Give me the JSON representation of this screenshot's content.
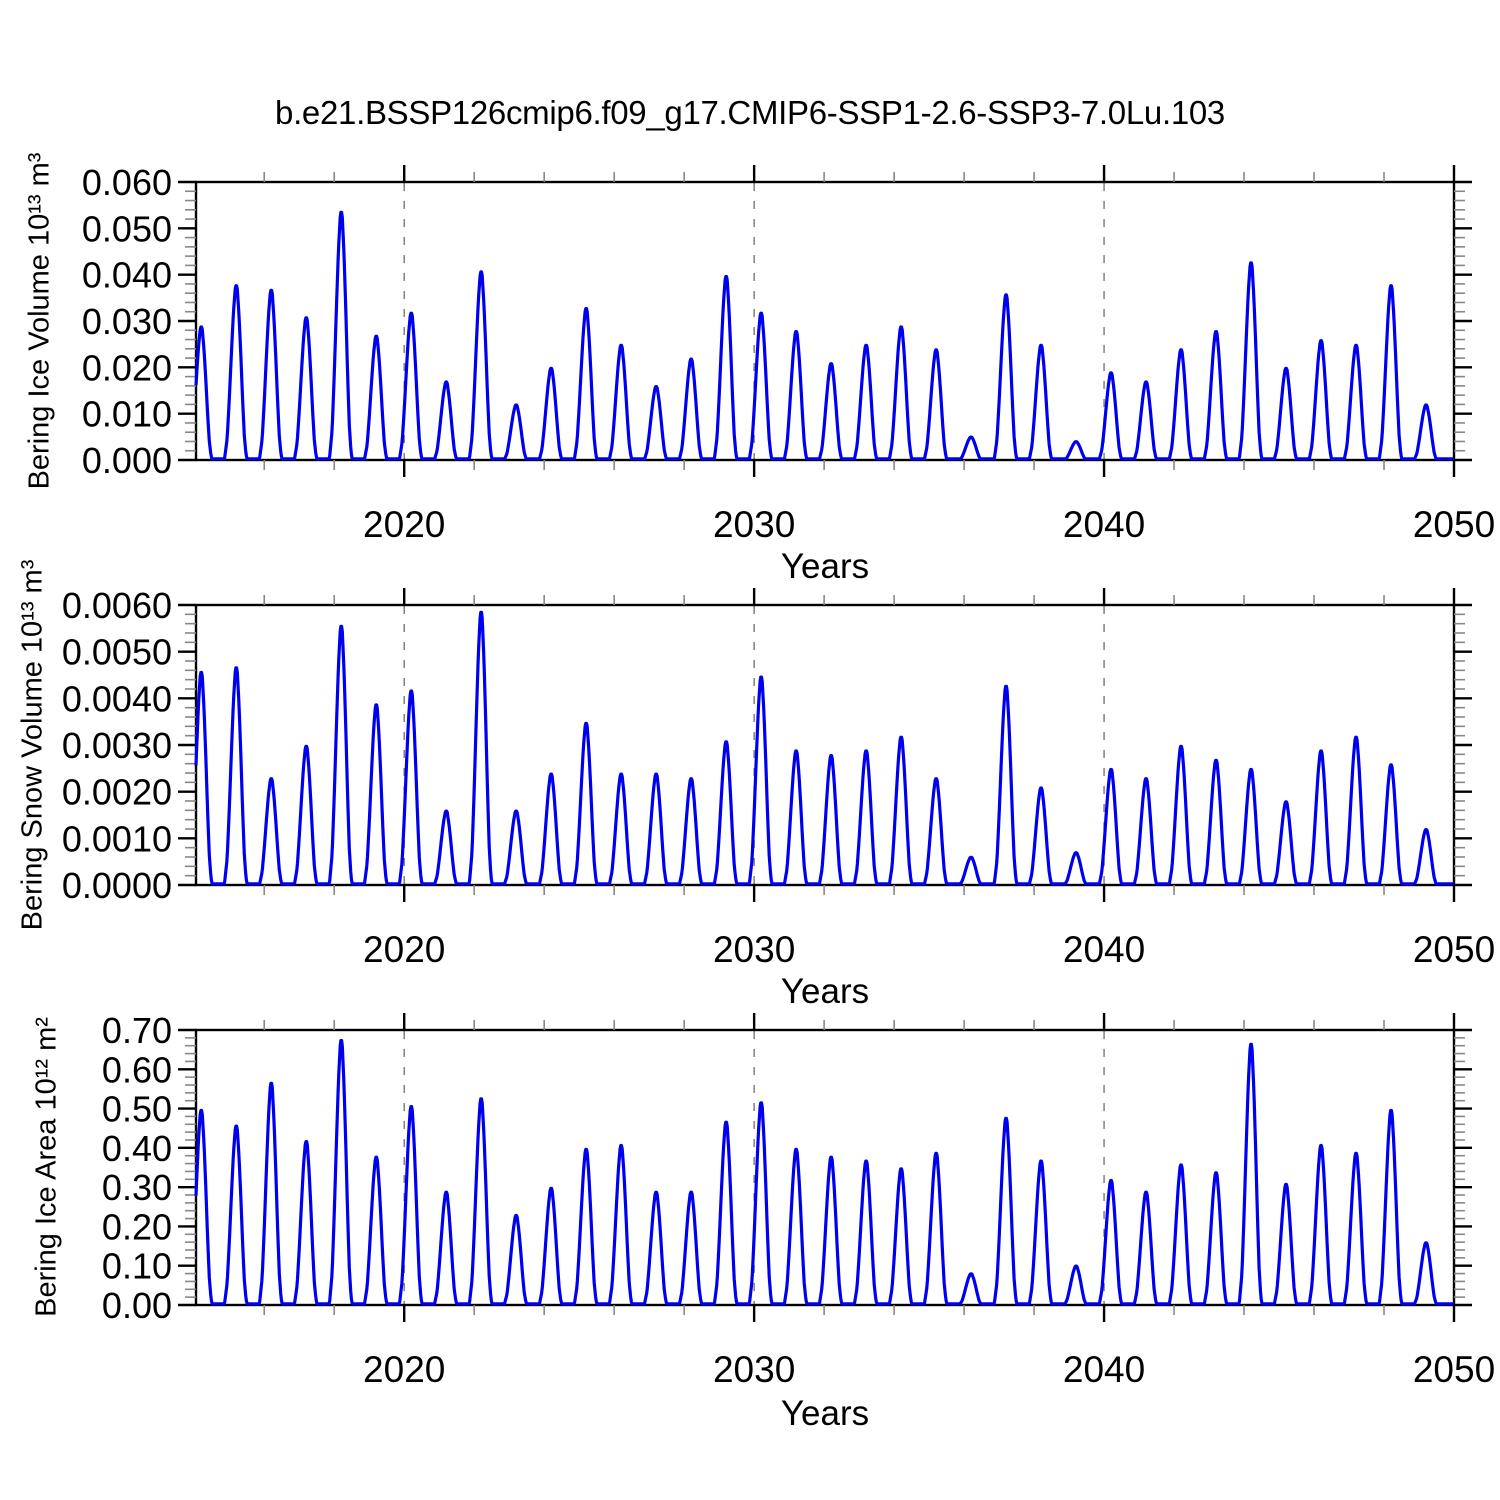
{
  "chart_data": {
    "type": "line",
    "title": "b.e21.BSSP126cmip6.f09_g17.CMIP6-SSP1-2.6-SSP3-7.0Lu.103",
    "line_color": "#0000f0",
    "frame_color": "#000000",
    "gridline_color": "#777777",
    "minor_tick_color": "#888888",
    "x_axis": {
      "label": "Years",
      "lim": [
        2014.05,
        2050
      ],
      "major_ticks": [
        2020,
        2030,
        2040,
        2050
      ],
      "tick_labels": [
        "2020",
        "2030",
        "2040",
        "2050"
      ],
      "minor_step_years": 2,
      "dashed_gridlines": [
        2020,
        2030,
        2040
      ]
    },
    "seasonal_profile": {
      "note": "intra-annual pulse shape: fraction of winter peak vs offset (years) from Jan 1",
      "offsets": [
        -0.14,
        -0.06,
        0.0,
        0.06,
        0.12,
        0.17,
        0.2,
        0.23,
        0.28,
        0.33,
        0.38,
        0.43,
        0.48,
        0.52
      ],
      "fractions": [
        0,
        0.12,
        0.34,
        0.6,
        0.84,
        0.97,
        1.0,
        0.97,
        0.82,
        0.6,
        0.35,
        0.14,
        0.03,
        0
      ]
    },
    "panels": [
      {
        "id": "ice-volume",
        "ylabel": "Bering Ice Volume 10¹³ m³",
        "ylim": [
          0,
          0.06
        ],
        "ytick_labels": [
          "0.000",
          "0.010",
          "0.020",
          "0.030",
          "0.040",
          "0.050",
          "0.060"
        ],
        "yminor_per_major": 4,
        "start_year": 2014,
        "annual_peak_values": [
          0.029,
          0.038,
          0.037,
          0.031,
          0.054,
          0.027,
          0.032,
          0.017,
          0.041,
          0.012,
          0.02,
          0.033,
          0.025,
          0.016,
          0.022,
          0.04,
          0.032,
          0.028,
          0.021,
          0.025,
          0.029,
          0.024,
          0.005,
          0.036,
          0.025,
          0.004,
          0.019,
          0.017,
          0.024,
          0.028,
          0.043,
          0.02,
          0.026,
          0.025,
          0.038,
          0.012
        ]
      },
      {
        "id": "snow-volume",
        "ylabel": "Bering Snow Volume 10¹³ m³",
        "ylim": [
          0,
          0.006
        ],
        "ytick_labels": [
          "0.0000",
          "0.0010",
          "0.0020",
          "0.0030",
          "0.0040",
          "0.0050",
          "0.0060"
        ],
        "yminor_per_major": 4,
        "start_year": 2014,
        "annual_peak_values": [
          0.0046,
          0.0047,
          0.0023,
          0.003,
          0.0056,
          0.0039,
          0.0042,
          0.0016,
          0.0059,
          0.0016,
          0.0024,
          0.0035,
          0.0024,
          0.0024,
          0.0023,
          0.0031,
          0.0045,
          0.0029,
          0.0028,
          0.0029,
          0.0032,
          0.0023,
          0.0006,
          0.0043,
          0.0021,
          0.0007,
          0.0025,
          0.0023,
          0.003,
          0.0027,
          0.0025,
          0.0018,
          0.0029,
          0.0032,
          0.0026,
          0.0012
        ]
      },
      {
        "id": "ice-area",
        "ylabel": "Bering Ice Area 10¹² m²",
        "ylim": [
          0,
          0.7
        ],
        "ytick_labels": [
          "0.00",
          "0.10",
          "0.20",
          "0.30",
          "0.40",
          "0.50",
          "0.60",
          "0.70"
        ],
        "yminor_per_major": 4,
        "start_year": 2014,
        "annual_peak_values": [
          0.5,
          0.46,
          0.57,
          0.42,
          0.68,
          0.38,
          0.51,
          0.29,
          0.53,
          0.23,
          0.3,
          0.4,
          0.41,
          0.29,
          0.29,
          0.47,
          0.52,
          0.4,
          0.38,
          0.37,
          0.35,
          0.39,
          0.08,
          0.48,
          0.37,
          0.1,
          0.32,
          0.29,
          0.36,
          0.34,
          0.67,
          0.31,
          0.41,
          0.39,
          0.5,
          0.16
        ]
      }
    ]
  }
}
